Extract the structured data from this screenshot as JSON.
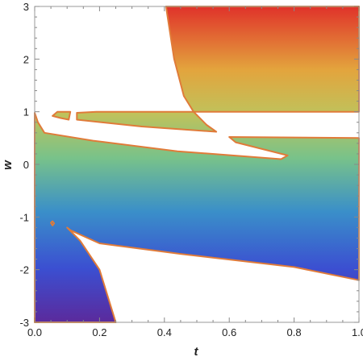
{
  "chart_data": {
    "type": "area",
    "xlabel": "t",
    "ylabel": "w",
    "xlim": [
      0,
      1
    ],
    "ylim": [
      -3,
      3
    ],
    "x_ticks": [
      "0.0",
      "0.2",
      "0.4",
      "0.6",
      "0.8",
      "1.0"
    ],
    "y_ticks": [
      "-3",
      "-2",
      "-1",
      "0",
      "1",
      "2",
      "3"
    ],
    "fill": "rainbow gradient by w (purple at w=-3, blue, cyan-green, yellow, red at w=3)",
    "boundary_color": "#e07b39",
    "regions": [
      {
        "id": "upper-right-block",
        "points": [
          [
            0.405,
            3.0
          ],
          [
            1.0,
            3.0
          ],
          [
            1.0,
            1.0
          ],
          [
            0.49,
            1.0
          ],
          [
            0.46,
            1.3
          ],
          [
            0.43,
            2.0
          ],
          [
            0.41,
            2.8
          ]
        ]
      },
      {
        "id": "middle-strip",
        "points": [
          [
            0.13,
            0.98
          ],
          [
            0.19,
            1.0
          ],
          [
            0.49,
            1.0
          ],
          [
            0.53,
            0.75
          ],
          [
            0.56,
            0.62
          ],
          [
            0.33,
            0.72
          ],
          [
            0.13,
            0.85
          ]
        ]
      },
      {
        "id": "small-tab",
        "points": [
          [
            0.055,
            0.92
          ],
          [
            0.07,
            1.0
          ],
          [
            0.11,
            1.0
          ],
          [
            0.105,
            0.85
          ],
          [
            0.08,
            0.88
          ]
        ]
      },
      {
        "id": "main-band",
        "points": [
          [
            0.0,
            0.98
          ],
          [
            0.01,
            0.8
          ],
          [
            0.03,
            0.6
          ],
          [
            0.18,
            0.45
          ],
          [
            0.44,
            0.25
          ],
          [
            0.76,
            0.1
          ],
          [
            0.78,
            0.17
          ],
          [
            0.62,
            0.42
          ],
          [
            0.6,
            0.52
          ],
          [
            1.0,
            0.5
          ],
          [
            1.0,
            -2.2
          ],
          [
            0.8,
            -1.95
          ],
          [
            0.45,
            -1.7
          ],
          [
            0.2,
            -1.5
          ],
          [
            0.11,
            -1.25
          ],
          [
            0.1,
            -1.2
          ],
          [
            0.14,
            -1.45
          ],
          [
            0.2,
            -2.0
          ],
          [
            0.25,
            -3.0
          ],
          [
            0.0,
            -3.0
          ]
        ]
      },
      {
        "id": "small-blob",
        "points": [
          [
            0.05,
            -1.11
          ],
          [
            0.055,
            -1.08
          ],
          [
            0.06,
            -1.12
          ],
          [
            0.055,
            -1.16
          ]
        ]
      }
    ]
  }
}
